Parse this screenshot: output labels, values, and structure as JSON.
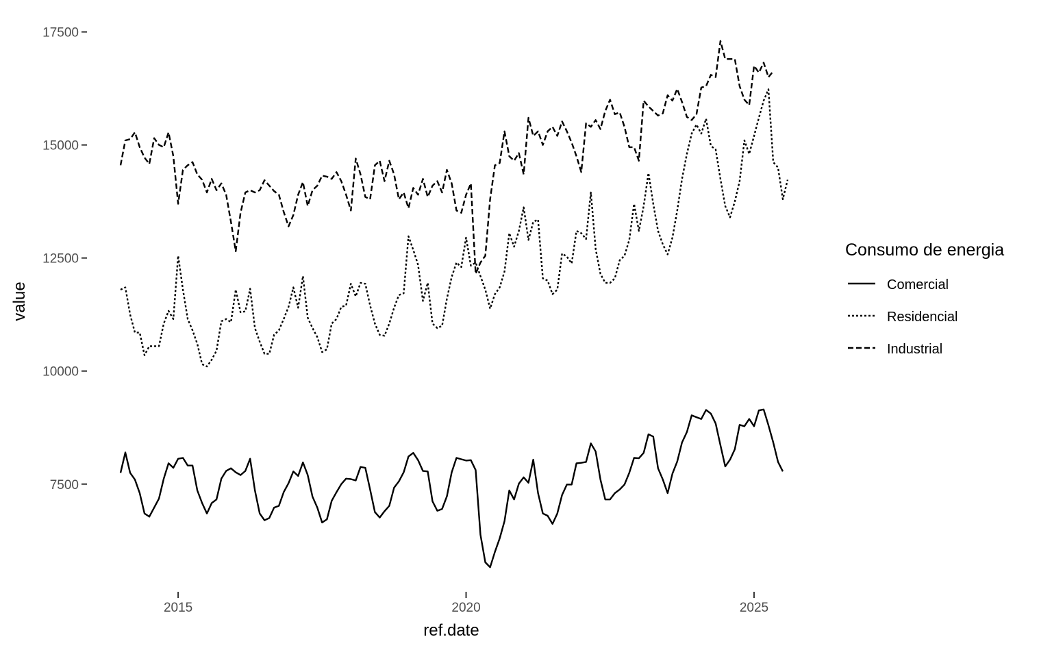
{
  "chart_data": {
    "type": "line",
    "xlabel": "ref.date",
    "ylabel": "value",
    "x_ticks": [
      "2015",
      "2020",
      "2025"
    ],
    "y_ticks": [
      "7500",
      "10000",
      "12500",
      "15000",
      "17500"
    ],
    "xlim": [
      2014.0,
      2025.5
    ],
    "ylim": [
      5300,
      17600
    ],
    "grid": false,
    "legend": {
      "title": "Consumo de energia",
      "position": "right"
    },
    "x_start": "2014-01",
    "x_frequency": "monthly",
    "series": [
      {
        "name": "Comercial",
        "dash": "solid",
        "values": [
          7750,
          8200,
          7750,
          7600,
          7300,
          6850,
          6780,
          6980,
          7180,
          7620,
          7960,
          7860,
          8060,
          8080,
          7910,
          7910,
          7360,
          7080,
          6850,
          7080,
          7160,
          7620,
          7790,
          7850,
          7760,
          7700,
          7790,
          8060,
          7360,
          6850,
          6700,
          6750,
          6980,
          7020,
          7320,
          7520,
          7780,
          7680,
          7980,
          7700,
          7220,
          6980,
          6650,
          6720,
          7130,
          7320,
          7500,
          7620,
          7610,
          7580,
          7880,
          7860,
          7380,
          6880,
          6760,
          6900,
          7020,
          7420,
          7560,
          7760,
          8110,
          8190,
          8030,
          7790,
          7780,
          7120,
          6910,
          6950,
          7230,
          7760,
          8080,
          8050,
          8020,
          8030,
          7810,
          6380,
          5770,
          5660,
          6000,
          6300,
          6680,
          7360,
          7160,
          7510,
          7650,
          7530,
          8040,
          7300,
          6850,
          6800,
          6620,
          6850,
          7260,
          7490,
          7490,
          7960,
          7970,
          7990,
          8400,
          8220,
          7600,
          7160,
          7160,
          7300,
          7380,
          7490,
          7750,
          8080,
          8070,
          8190,
          8600,
          8550,
          7850,
          7600,
          7300,
          7730,
          8000,
          8420,
          8650,
          9020,
          8980,
          8940,
          9140,
          9060,
          8840,
          8360,
          7890,
          8040,
          8270,
          8810,
          8780,
          8940,
          8780,
          9130,
          9150,
          8800,
          8420,
          7990,
          7780
        ]
      },
      {
        "name": "Residencial",
        "dash": "dotted",
        "values": [
          11800,
          11850,
          11250,
          10850,
          10850,
          10350,
          10550,
          10550,
          10550,
          11050,
          11330,
          11150,
          12550,
          11800,
          11150,
          10900,
          10600,
          10150,
          10100,
          10250,
          10450,
          11100,
          11150,
          11080,
          11800,
          11300,
          11320,
          11820,
          10950,
          10650,
          10380,
          10380,
          10800,
          10900,
          11150,
          11420,
          11850,
          11400,
          12100,
          11180,
          10950,
          10750,
          10420,
          10480,
          11050,
          11150,
          11420,
          11450,
          11930,
          11650,
          11950,
          11930,
          11450,
          11050,
          10800,
          10780,
          11050,
          11400,
          11680,
          11720,
          12980,
          12680,
          12350,
          11550,
          11950,
          11050,
          10950,
          11000,
          11600,
          12080,
          12400,
          12300,
          12950,
          12330,
          12400,
          12100,
          11800,
          11380,
          11700,
          11850,
          12200,
          13050,
          12750,
          13100,
          13620,
          12900,
          13300,
          13350,
          12050,
          12000,
          11700,
          11800,
          12600,
          12530,
          12380,
          13100,
          13050,
          12920,
          13950,
          12700,
          12150,
          11950,
          11950,
          12050,
          12450,
          12550,
          12900,
          13700,
          13100,
          13650,
          14380,
          13700,
          13100,
          12800,
          12580,
          12950,
          13550,
          14250,
          14800,
          15250,
          15450,
          15250,
          15580,
          14980,
          14900,
          14250,
          13650,
          13400,
          13750,
          14200,
          15100,
          14800,
          15200,
          15600,
          15980,
          16230,
          14620,
          14500,
          13800,
          14230
        ]
      },
      {
        "name": "Industrial",
        "dash": "dashed",
        "values": [
          14550,
          15100,
          15130,
          15280,
          14950,
          14720,
          14580,
          15150,
          15000,
          14950,
          15280,
          14750,
          13700,
          14450,
          14550,
          14620,
          14350,
          14230,
          13950,
          14250,
          14000,
          14150,
          13900,
          13300,
          12650,
          13500,
          13950,
          14000,
          13950,
          14000,
          14220,
          14100,
          13980,
          13900,
          13520,
          13200,
          13450,
          13900,
          14180,
          13650,
          14000,
          14100,
          14320,
          14300,
          14250,
          14400,
          14200,
          13900,
          13550,
          14700,
          14350,
          13850,
          13800,
          14550,
          14650,
          14200,
          14650,
          14350,
          13800,
          13950,
          13600,
          14050,
          13900,
          14250,
          13850,
          14100,
          14200,
          13950,
          14450,
          14150,
          13550,
          13500,
          13900,
          14150,
          12150,
          12400,
          12550,
          13800,
          14550,
          14600,
          15300,
          14750,
          14650,
          14820,
          14350,
          15600,
          15200,
          15300,
          15000,
          15300,
          15400,
          15200,
          15520,
          15300,
          15050,
          14750,
          14400,
          15480,
          15400,
          15550,
          15350,
          15750,
          16000,
          15680,
          15720,
          15400,
          14950,
          14950,
          14650,
          15980,
          15850,
          15750,
          15650,
          15700,
          16100,
          15980,
          16240,
          15950,
          15620,
          15550,
          15680,
          16270,
          16300,
          16550,
          16500,
          17300,
          16900,
          16900,
          16900,
          16300,
          16000,
          15880,
          16750,
          16600,
          16820,
          16500,
          16630
        ]
      }
    ]
  }
}
